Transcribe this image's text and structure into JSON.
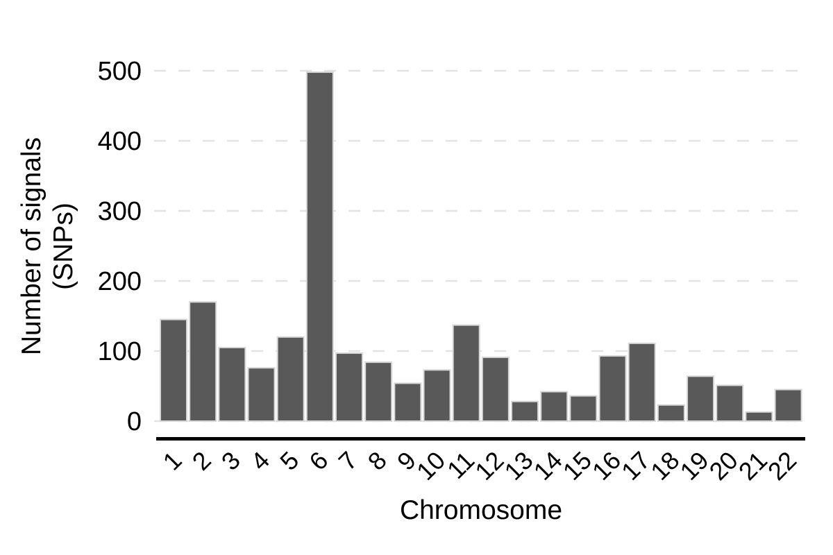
{
  "figure": {
    "background": "#ffffff"
  },
  "chart_data": {
    "type": "bar",
    "title": "",
    "xlabel": "Chromosome",
    "ylabel_lines": [
      "Number of signals",
      "(SNPs)"
    ],
    "categories": [
      "1",
      "2",
      "3",
      "4",
      "5",
      "6",
      "7",
      "8",
      "9",
      "10",
      "11",
      "12",
      "13",
      "14",
      "15",
      "16",
      "17",
      "18",
      "19",
      "20",
      "21",
      "22"
    ],
    "values": [
      145,
      170,
      105,
      76,
      120,
      498,
      97,
      84,
      54,
      73,
      137,
      91,
      28,
      42,
      36,
      93,
      111,
      23,
      64,
      51,
      13,
      45
    ],
    "yticks": [
      0,
      100,
      200,
      300,
      400,
      500
    ],
    "ylim": [
      0,
      525
    ],
    "grid": "horizontal-dashed",
    "legend": "none",
    "bar_color": "#595959",
    "bar_stroke": "#d6d6d6",
    "grid_color": "#e3e3e3",
    "axis_color": "#000000",
    "text_color": "#000000"
  }
}
